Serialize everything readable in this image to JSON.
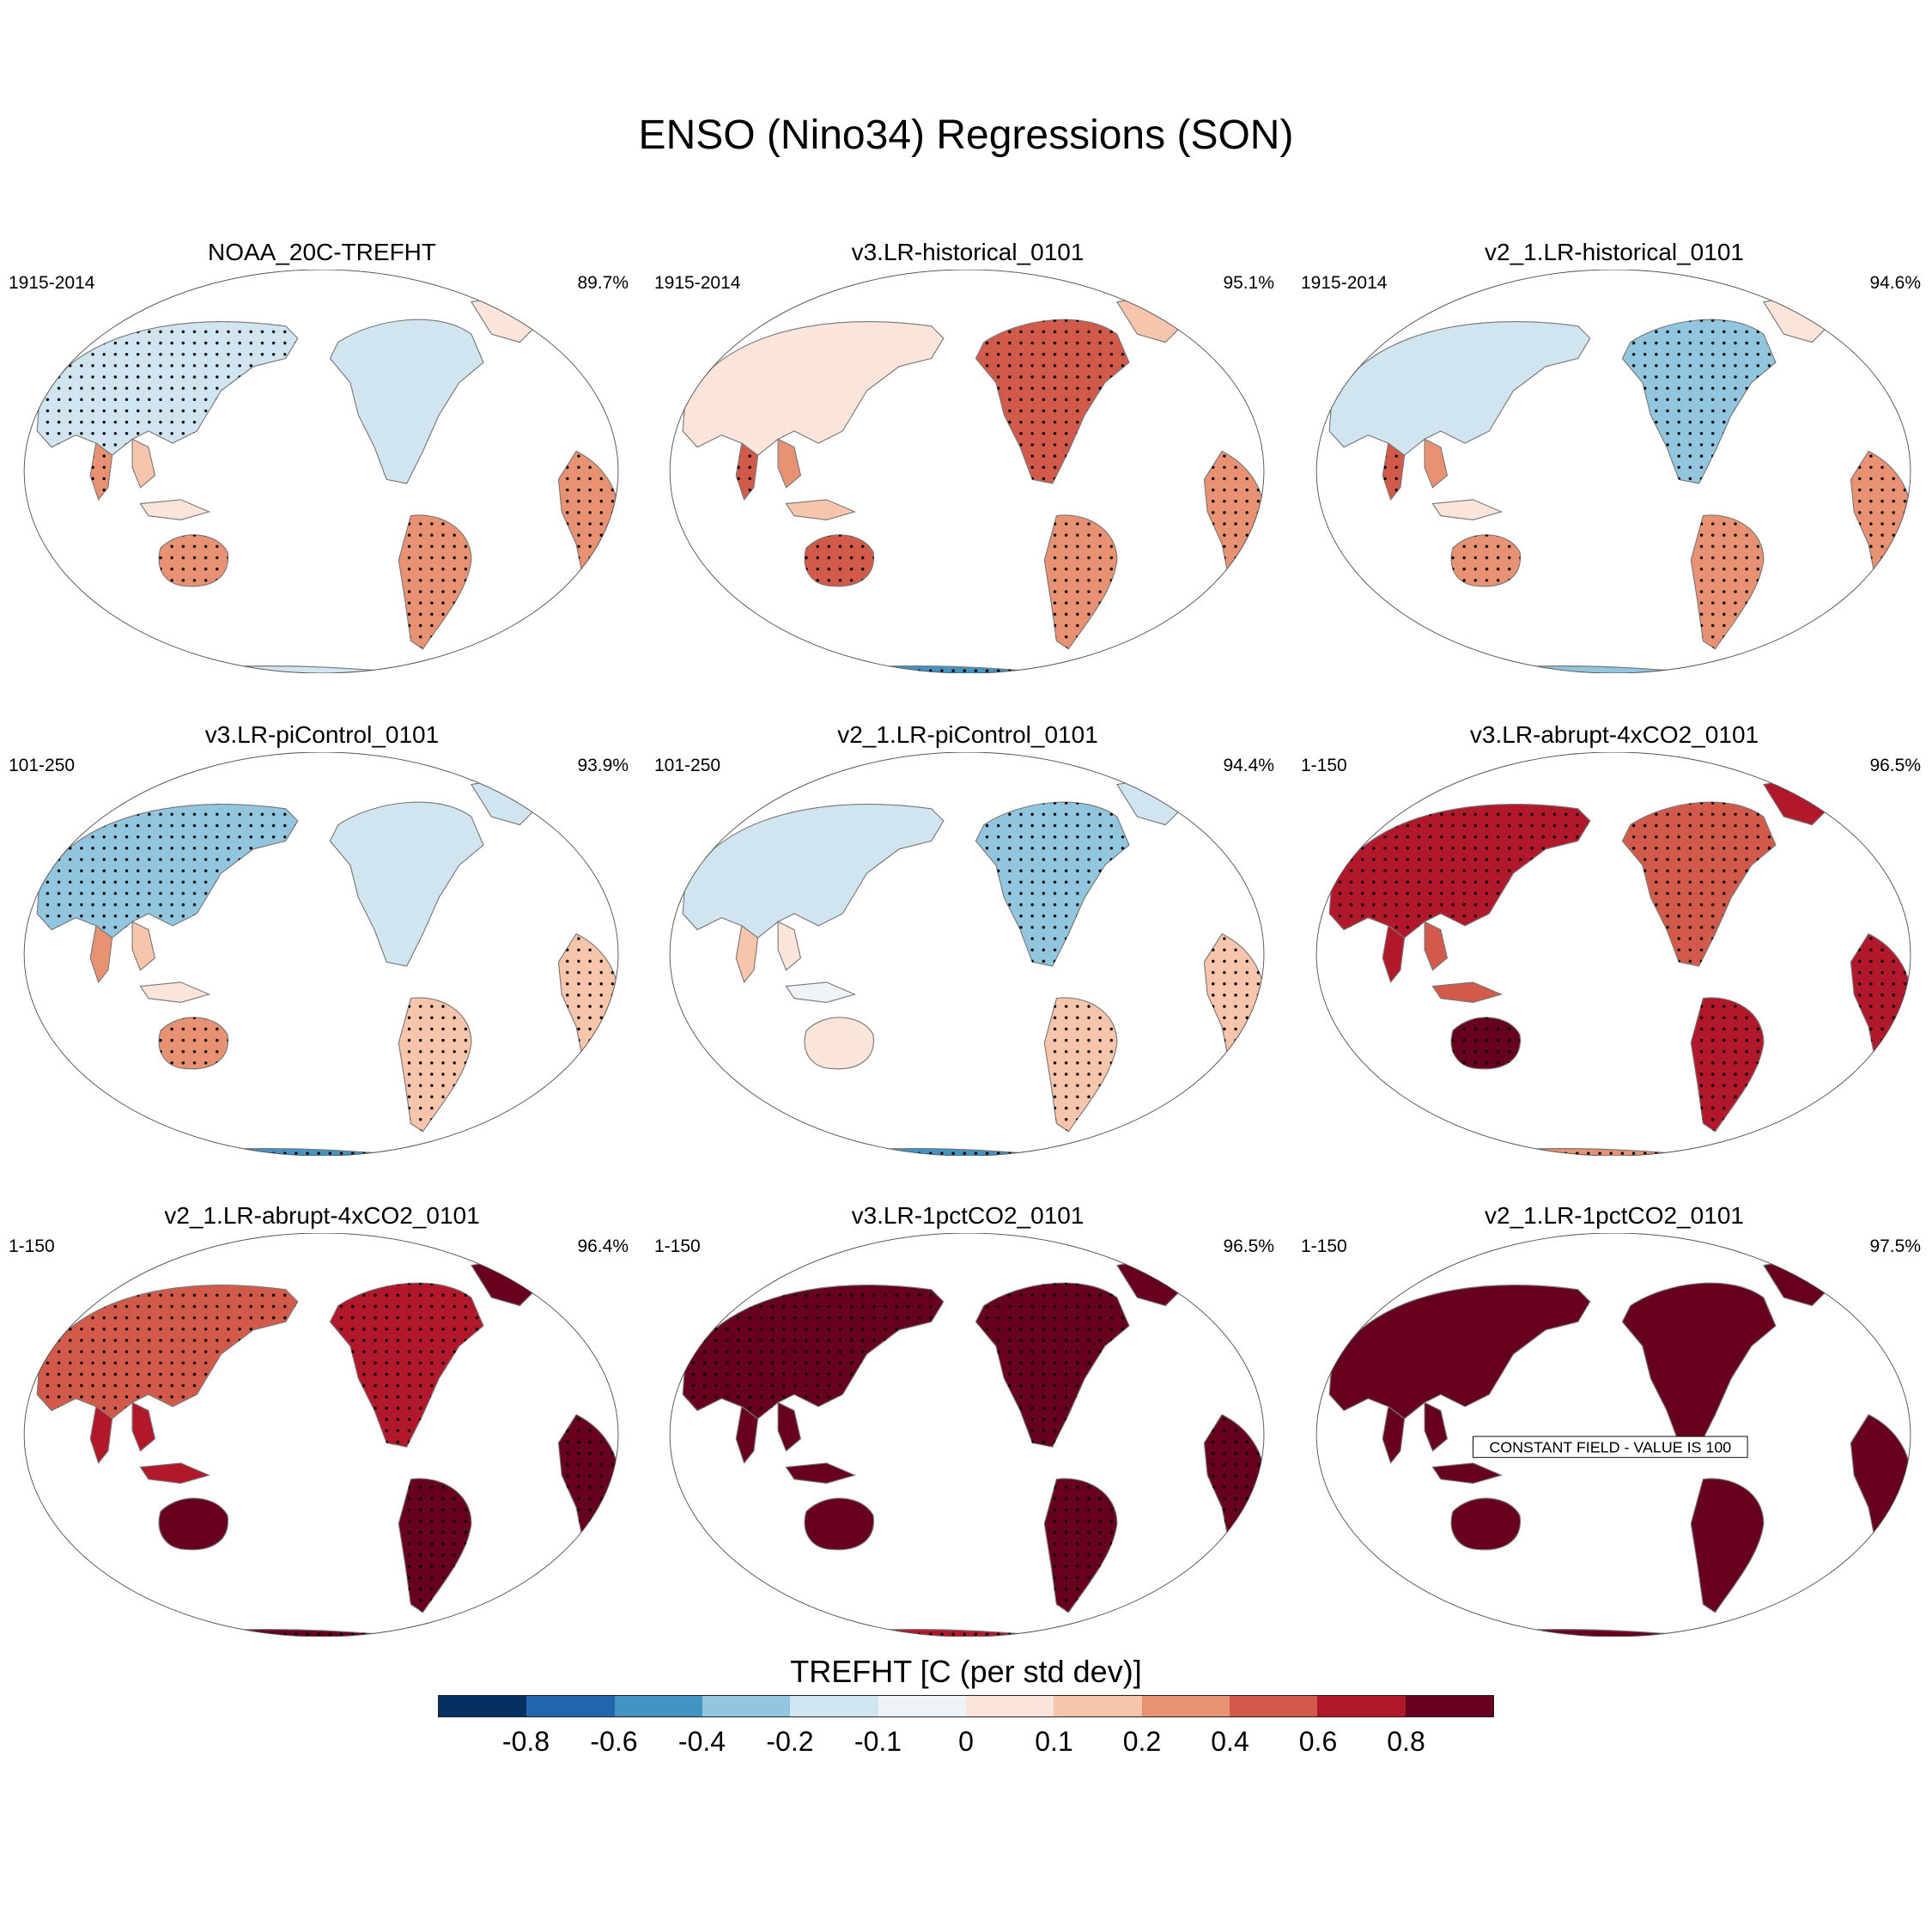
{
  "title": "ENSO (Nino34) Regressions (SON)",
  "panels": [
    {
      "title": "NOAA_20C-TREFHT",
      "years": "1915-2014",
      "pct": "89.7%",
      "pattern": "obs"
    },
    {
      "title": "v3.LR-historical_0101",
      "years": "1915-2014",
      "pct": "95.1%",
      "pattern": "hist3"
    },
    {
      "title": "v2_1.LR-historical_0101",
      "years": "1915-2014",
      "pct": "94.6%",
      "pattern": "hist2"
    },
    {
      "title": "v3.LR-piControl_0101",
      "years": "101-250",
      "pct": "93.9%",
      "pattern": "pic3"
    },
    {
      "title": "v2_1.LR-piControl_0101",
      "years": "101-250",
      "pct": "94.4%",
      "pattern": "pic2"
    },
    {
      "title": "v3.LR-abrupt-4xCO2_0101",
      "years": "1-150",
      "pct": "96.5%",
      "pattern": "warm"
    },
    {
      "title": "v2_1.LR-abrupt-4xCO2_0101",
      "years": "1-150",
      "pct": "96.4%",
      "pattern": "warm2"
    },
    {
      "title": "v3.LR-1pctCO2_0101",
      "years": "1-150",
      "pct": "96.5%",
      "pattern": "hot"
    },
    {
      "title": "v2_1.LR-1pctCO2_0101",
      "years": "1-150",
      "pct": "97.5%",
      "pattern": "const",
      "note": "CONSTANT FIELD - VALUE IS 100"
    }
  ],
  "colorbar": {
    "title": "TREFHT [C (per std dev)]",
    "labels": [
      "-0.8",
      "-0.6",
      "-0.4",
      "-0.2",
      "-0.1",
      "0",
      "0.1",
      "0.2",
      "0.4",
      "0.6",
      "0.8"
    ],
    "colors": [
      "#053061",
      "#2166ac",
      "#4393c3",
      "#92c5de",
      "#d1e5f0",
      "#eef3f8",
      "#fbe5da",
      "#f7c5ab",
      "#e99273",
      "#d25a4a",
      "#b2182b",
      "#67001f"
    ]
  }
}
